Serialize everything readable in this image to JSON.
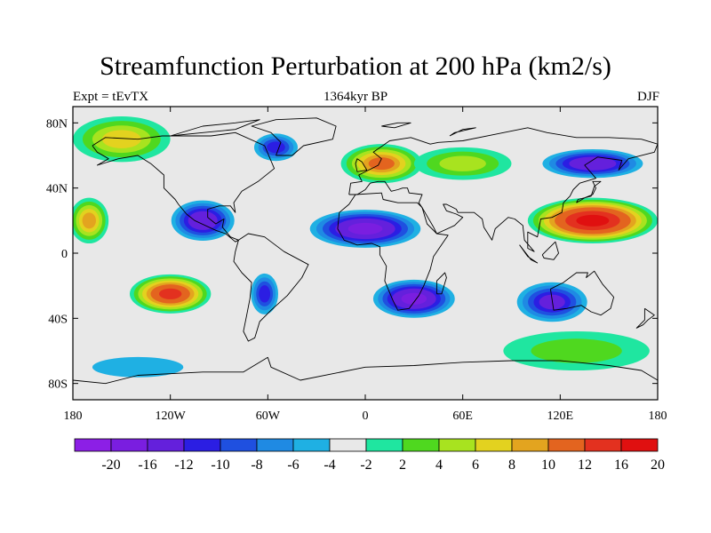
{
  "title": "Streamfunction Perturbation at 200 hPa (km2/s)",
  "subtitle_left": "Expt = tEvTX",
  "subtitle_center": "1364kyr BP",
  "subtitle_right": "DJF",
  "map": {
    "projection": "cylindrical-equidistant",
    "lon_range": [
      -180,
      180
    ],
    "lat_range": [
      -90,
      90
    ],
    "land_fill": "#e8e8e8",
    "coastline_color": "#000000"
  },
  "lat_ticks": [
    {
      "lat": 80,
      "label": "80N"
    },
    {
      "lat": 40,
      "label": "40N"
    },
    {
      "lat": 0,
      "label": "0"
    },
    {
      "lat": -40,
      "label": "40S"
    },
    {
      "lat": -80,
      "label": "80S"
    }
  ],
  "lon_ticks": [
    {
      "lon": -180,
      "label": "180"
    },
    {
      "lon": -120,
      "label": "120W"
    },
    {
      "lon": -60,
      "label": "60W"
    },
    {
      "lon": 0,
      "label": "0"
    },
    {
      "lon": 60,
      "label": "60E"
    },
    {
      "lon": 120,
      "label": "120E"
    },
    {
      "lon": 180,
      "label": "180"
    }
  ],
  "colorbar": {
    "colors": [
      "#8c1fe6",
      "#7a1ee0",
      "#6420dc",
      "#2b1ee3",
      "#1f50e0",
      "#1f8ae3",
      "#1fb0e3",
      "#e8e8e8",
      "#1fe6a0",
      "#4fd81f",
      "#a8e31f",
      "#e3d21f",
      "#e3a41f",
      "#e3641f",
      "#e3311f",
      "#e01010"
    ],
    "labels": [
      "-20",
      "-16",
      "-12",
      "-10",
      "-8",
      "-6",
      "-4",
      "-2",
      "2",
      "4",
      "6",
      "8",
      "10",
      "12",
      "16",
      "20"
    ]
  },
  "chart_data": {
    "type": "heatmap",
    "title": "Streamfunction Perturbation at 200 hPa (km2/s)",
    "subtitle": "1364kyr BP",
    "xlabel": "",
    "ylabel": "",
    "x_range": [
      -180,
      180
    ],
    "y_range": [
      -90,
      90
    ],
    "contour_levels": [
      -20,
      -16,
      -12,
      -10,
      -8,
      -6,
      -4,
      -2,
      2,
      4,
      6,
      8,
      10,
      12,
      16,
      20
    ],
    "features": [
      {
        "lon": -100,
        "lat": 20,
        "value": -14,
        "rx": 22,
        "ry": 14
      },
      {
        "lon": -55,
        "lat": 65,
        "value": -10,
        "rx": 16,
        "ry": 10
      },
      {
        "lon": -62,
        "lat": -25,
        "value": -10,
        "rx": 10,
        "ry": 15
      },
      {
        "lon": 0,
        "lat": 15,
        "value": -16,
        "rx": 38,
        "ry": 13
      },
      {
        "lon": 30,
        "lat": -28,
        "value": -16,
        "rx": 28,
        "ry": 13
      },
      {
        "lon": 115,
        "lat": -30,
        "value": -12,
        "rx": 25,
        "ry": 14
      },
      {
        "lon": 140,
        "lat": 55,
        "value": -14,
        "rx": 35,
        "ry": 10
      },
      {
        "lon": -120,
        "lat": -25,
        "value": 16,
        "rx": 25,
        "ry": 12
      },
      {
        "lon": 10,
        "lat": 55,
        "value": 12,
        "rx": 25,
        "ry": 12
      },
      {
        "lon": 140,
        "lat": 20,
        "value": 20,
        "rx": 40,
        "ry": 14
      },
      {
        "lon": -170,
        "lat": 20,
        "value": 10,
        "rx": 12,
        "ry": 14
      },
      {
        "lon": -150,
        "lat": 70,
        "value": 8,
        "rx": 30,
        "ry": 14
      },
      {
        "lon": 60,
        "lat": 55,
        "value": 6,
        "rx": 30,
        "ry": 10
      },
      {
        "lon": 130,
        "lat": -60,
        "value": 4,
        "rx": 45,
        "ry": 12
      },
      {
        "lon": -140,
        "lat": -70,
        "value": -4,
        "rx": 45,
        "ry": 10
      }
    ]
  }
}
